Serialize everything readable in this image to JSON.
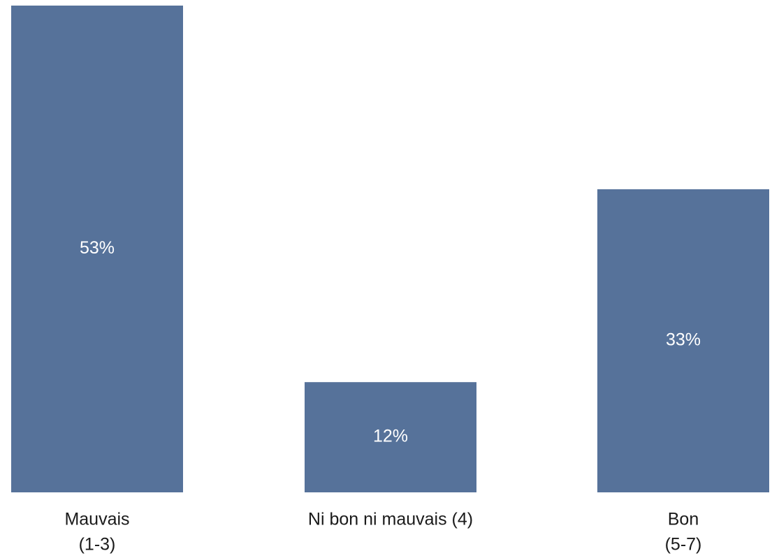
{
  "chart_data": {
    "type": "bar",
    "categories": [
      [
        "Mauvais",
        "(1-3)"
      ],
      [
        "Ni bon ni mauvais (4)"
      ],
      [
        "Bon",
        "(5-7)"
      ]
    ],
    "values": [
      53,
      12,
      33
    ],
    "value_labels": [
      "53%",
      "12%",
      "33%"
    ],
    "ylim": [
      0,
      53
    ],
    "bar_color": "#56729a",
    "grid": false,
    "legend": "none"
  }
}
